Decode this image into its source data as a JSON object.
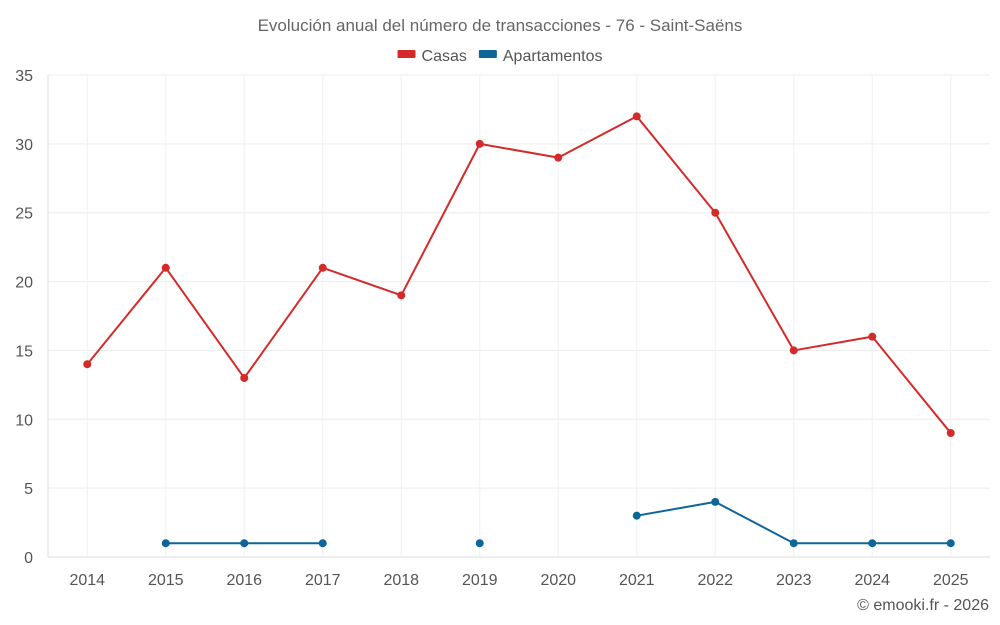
{
  "chart_data": {
    "type": "line",
    "title": "Evolución anual del número de transacciones - 76 - Saint-Saëns",
    "categories": [
      "2014",
      "2015",
      "2016",
      "2017",
      "2018",
      "2019",
      "2020",
      "2021",
      "2022",
      "2023",
      "2024",
      "2025"
    ],
    "ylim": [
      0,
      35
    ],
    "yticks": [
      0,
      5,
      10,
      15,
      20,
      25,
      30,
      35
    ],
    "ytick_labels": [
      "0",
      "5",
      "10",
      "15",
      "20",
      "25",
      "30",
      "35"
    ],
    "grid": true,
    "legend_position": "top-center",
    "series": [
      {
        "name": "Casas",
        "color": "#d42a2a",
        "values": [
          14,
          21,
          13,
          21,
          19,
          30,
          29,
          32,
          25,
          15,
          16,
          9
        ]
      },
      {
        "name": "Apartamentos",
        "color": "#0e6598",
        "values": [
          null,
          1,
          1,
          1,
          null,
          1,
          null,
          3,
          4,
          1,
          1,
          1
        ]
      }
    ]
  },
  "credit": "© emooki.fr - 2026"
}
